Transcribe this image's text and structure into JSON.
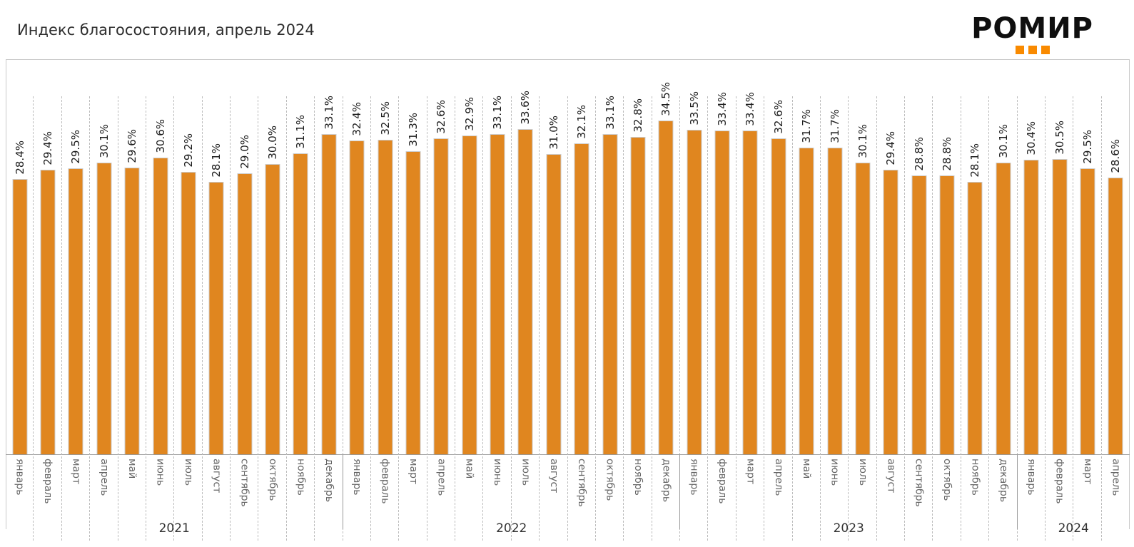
{
  "page": {
    "title": "Индекс благосостояния, апрель 2024"
  },
  "logo": {
    "text": "РОМИР",
    "squares_count": 3
  },
  "colors": {
    "bar": "#E0861F",
    "bar_edge": "#CCCCCC",
    "logo_accent": "#F98A00",
    "grid": "#BCBCBC",
    "axis": "#9A9A9A",
    "frame": "#C9C9C9",
    "value_label": "#1C1C1C",
    "month_label": "#666666",
    "year_label": "#333333"
  },
  "chart_data": {
    "type": "bar",
    "title": "Индекс благосостояния, апрель 2024",
    "xlabel": "",
    "ylabel": "",
    "unit": "%",
    "ylim": [
      0,
      40.8
    ],
    "grid": "vertical-dashed",
    "legend": "none",
    "value_label_rotation": 90,
    "month_label_rotation": -90,
    "groups": [
      {
        "year": "2021",
        "months": [
          "январь",
          "февраль",
          "март",
          "апрель",
          "май",
          "июнь",
          "июль",
          "август",
          "сентябрь",
          "октябрь",
          "ноябрь",
          "декабрь"
        ],
        "values": [
          28.4,
          29.4,
          29.5,
          30.1,
          29.6,
          30.6,
          29.2,
          28.1,
          29.0,
          30.0,
          31.1,
          33.1
        ]
      },
      {
        "year": "2022",
        "months": [
          "январь",
          "февраль",
          "март",
          "апрель",
          "май",
          "июнь",
          "июль",
          "август",
          "сентябрь",
          "октябрь",
          "ноябрь",
          "декабрь"
        ],
        "values": [
          32.4,
          32.5,
          31.3,
          32.6,
          32.9,
          33.1,
          33.6,
          31.0,
          32.1,
          33.1,
          32.8,
          34.5
        ]
      },
      {
        "year": "2023",
        "months": [
          "январь",
          "февраль",
          "март",
          "апрель",
          "май",
          "июнь",
          "июль",
          "август",
          "сентябрь",
          "октябрь",
          "ноябрь",
          "декабрь"
        ],
        "values": [
          33.5,
          33.4,
          33.4,
          32.6,
          31.7,
          31.7,
          30.1,
          29.4,
          28.8,
          28.8,
          28.1,
          30.1
        ]
      },
      {
        "year": "2024",
        "months": [
          "январь",
          "февраль",
          "март",
          "апрель"
        ],
        "values": [
          30.4,
          30.5,
          29.5,
          28.6
        ]
      }
    ]
  }
}
